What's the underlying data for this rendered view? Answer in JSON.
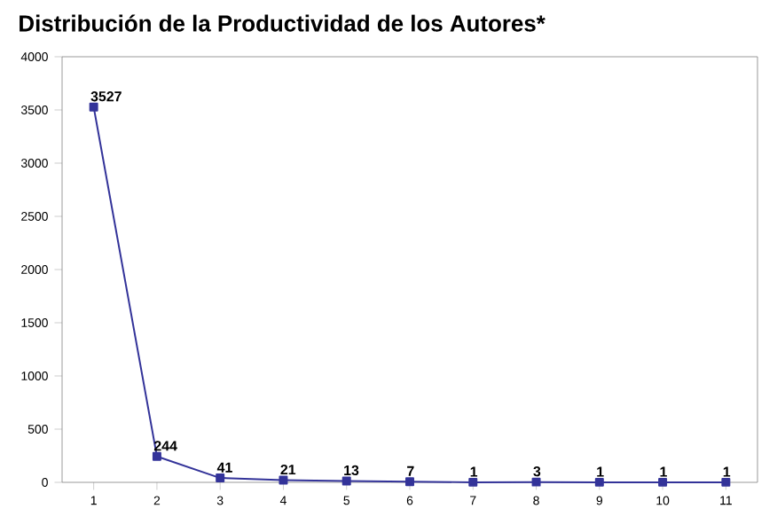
{
  "chart_data": {
    "type": "line",
    "title": "Distribución de la Productividad de los Autores*",
    "categories": [
      "1",
      "2",
      "3",
      "4",
      "5",
      "6",
      "7",
      "8",
      "9",
      "10",
      "11"
    ],
    "values": [
      3527,
      244,
      41,
      21,
      13,
      7,
      1,
      3,
      1,
      1,
      1
    ],
    "color": "#333399",
    "marker": "square",
    "data_labels": true,
    "ylim": [
      0,
      4000
    ],
    "yticks": [
      0,
      500,
      1000,
      1500,
      2000,
      2500,
      3000,
      3500,
      4000
    ]
  }
}
